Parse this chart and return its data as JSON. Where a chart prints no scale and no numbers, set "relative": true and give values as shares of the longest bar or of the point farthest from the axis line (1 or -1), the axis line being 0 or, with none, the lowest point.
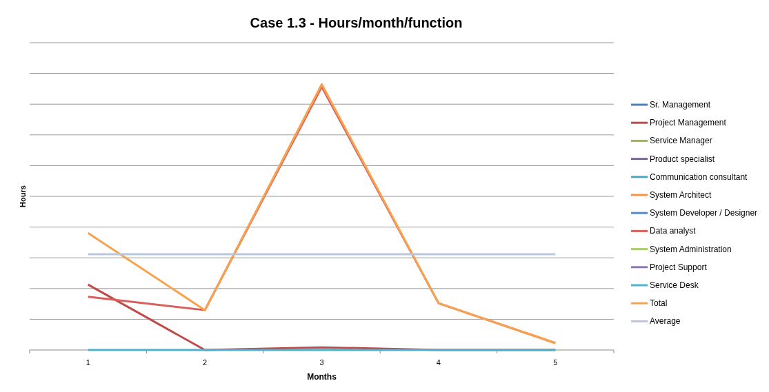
{
  "chart_data": {
    "type": "line",
    "title": "Case 1.3 - Hours/month/function",
    "xlabel": "Months",
    "ylabel": "Hours",
    "categories": [
      "1",
      "2",
      "3",
      "4",
      "5"
    ],
    "relative": true,
    "grid": "y",
    "legend": "right",
    "line_style": "solid",
    "marker": "none",
    "series": [
      {
        "name": "Sr. Management",
        "color": "#4a7ebb",
        "values": [
          null,
          null,
          null,
          null,
          null
        ]
      },
      {
        "name": "Project Management",
        "color": "#be4b48",
        "values": [
          0.246,
          0,
          0.01,
          0,
          0
        ]
      },
      {
        "name": "Service Manager",
        "color": "#98b954",
        "values": [
          null,
          null,
          null,
          null,
          null
        ]
      },
      {
        "name": "Product specialist",
        "color": "#7d60a0",
        "values": [
          null,
          null,
          null,
          null,
          null
        ]
      },
      {
        "name": "Communication consultant",
        "color": "#46aac5",
        "values": [
          null,
          null,
          null,
          null,
          null
        ]
      },
      {
        "name": "System Architect",
        "color": "#f69240",
        "values": [
          null,
          null,
          null,
          null,
          null
        ]
      },
      {
        "name": "System Developer / Designer",
        "color": "#5a8ac6",
        "values": [
          null,
          null,
          null,
          null,
          null
        ]
      },
      {
        "name": "Data analyst",
        "color": "#d8605a",
        "values": [
          0.2,
          0.15,
          0.99,
          0.176,
          0.026
        ]
      },
      {
        "name": "System Administration",
        "color": "#a8cd6a",
        "values": [
          null,
          null,
          null,
          null,
          null
        ]
      },
      {
        "name": "Project Support",
        "color": "#9077b4",
        "values": [
          null,
          null,
          null,
          null,
          null
        ]
      },
      {
        "name": "Service Desk",
        "color": "#4fb2cc",
        "values": [
          0,
          0,
          0,
          0,
          0
        ]
      },
      {
        "name": "Total",
        "color": "#f8a24e",
        "values": [
          0.44,
          0.15,
          1,
          0.176,
          0.026
        ]
      },
      {
        "name": "Average",
        "color": "#b8c7e0",
        "values": [
          0.36,
          0.36,
          0.36,
          0.36,
          0.36
        ]
      }
    ]
  }
}
